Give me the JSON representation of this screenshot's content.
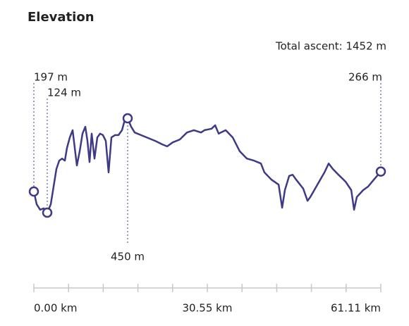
{
  "chart_data": {
    "type": "line",
    "title": "Elevation",
    "annotation": "Total ascent: 1452 m",
    "x": [
      0,
      0.5,
      1.12,
      1.74,
      2.36,
      2.98,
      3.48,
      3.98,
      4.47,
      4.97,
      5.47,
      5.84,
      6.34,
      6.83,
      7.2,
      7.58,
      8.07,
      8.57,
      9.07,
      9.44,
      9.81,
      10.19,
      10.68,
      11.18,
      11.68,
      12.17,
      12.67,
      13.17,
      13.66,
      14.29,
      14.91,
      15.53,
      16.02,
      16.52,
      17.14,
      17.76,
      18.88,
      20.12,
      21.37,
      22.61,
      23.48,
      24.47,
      25.71,
      26.96,
      28.2,
      29.44,
      30.06,
      31.3,
      31.93,
      32.55,
      33.79,
      35.03,
      36.27,
      37.52,
      38.76,
      40,
      40.62,
      41.86,
      43.11,
      43.73,
      44.22,
      44.97,
      45.59,
      46.21,
      47.45,
      48.2,
      48.7,
      49.94,
      51.18,
      51.93,
      52.67,
      53.66,
      54.91,
      55.9,
      56.4,
      56.89,
      58.01,
      58.88,
      59.88,
      61.11
    ],
    "series": [
      {
        "name": "Elevation",
        "color": "#3f3a86",
        "values": [
          197,
          153,
          134,
          139,
          124,
          153,
          214,
          275,
          304,
          311,
          304,
          348,
          384,
          409,
          348,
          287,
          336,
          397,
          421,
          372,
          299,
          397,
          311,
          384,
          397,
          392,
          372,
          263,
          384,
          392,
          392,
          409,
          445,
          450,
          421,
          401,
          392,
          382,
          372,
          360,
          353,
          367,
          377,
          401,
          409,
          401,
          409,
          414,
          426,
          397,
          409,
          384,
          336,
          311,
          304,
          294,
          263,
          238,
          221,
          141,
          202,
          251,
          255,
          238,
          207,
          165,
          178,
          221,
          263,
          294,
          275,
          255,
          231,
          202,
          134,
          178,
          202,
          214,
          238,
          266
        ],
        "value_labels": [
          "197 m",
          null,
          null,
          null,
          "124 m",
          null,
          null,
          null,
          null,
          null,
          null,
          null,
          null,
          null,
          null,
          null,
          null,
          null,
          null,
          null,
          null,
          null,
          null,
          null,
          null,
          null,
          null,
          null,
          null,
          null,
          null,
          null,
          null,
          "450 m",
          null,
          null,
          null,
          null,
          null,
          null,
          null,
          null,
          null,
          null,
          null,
          null,
          null,
          null,
          null,
          null,
          null,
          null,
          null,
          null,
          null,
          null,
          null,
          null,
          null,
          null,
          null,
          null,
          null,
          null,
          null,
          null,
          null,
          null,
          null,
          null,
          null,
          null,
          null,
          null,
          null,
          null,
          null,
          null,
          null,
          "266 m"
        ]
      }
    ],
    "xlim": [
      0,
      61.11
    ],
    "ylim": [
      0,
      500
    ],
    "xticks": [
      {
        "value": 0,
        "label": "0.00 km"
      },
      {
        "value": 30.55,
        "label": "30.55 km"
      },
      {
        "value": 61.11,
        "label": "61.11 km"
      }
    ],
    "xminor_ticks": [
      6.111,
      12.222,
      18.333,
      24.444,
      36.666,
      42.777,
      48.888,
      54.999
    ]
  }
}
